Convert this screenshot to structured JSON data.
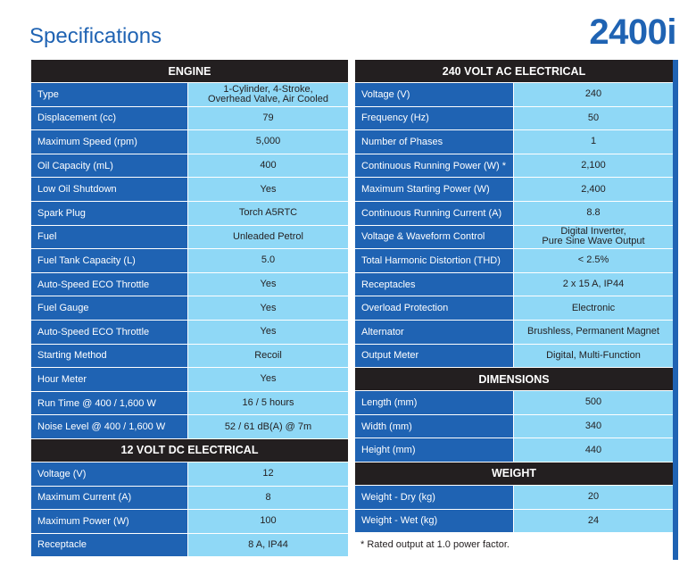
{
  "header": {
    "title": "Specifications",
    "model": "2400i"
  },
  "left_sections": [
    {
      "title": "ENGINE",
      "rows": [
        {
          "label": "Type",
          "value": "1-Cylinder, 4-Stroke,\nOverhead Valve, Air Cooled"
        },
        {
          "label": "Displacement (cc)",
          "value": "79"
        },
        {
          "label": "Maximum Speed (rpm)",
          "value": "5,000"
        },
        {
          "label": "Oil Capacity (mL)",
          "value": "400"
        },
        {
          "label": "Low Oil Shutdown",
          "value": "Yes"
        },
        {
          "label": "Spark Plug",
          "value": "Torch A5RTC"
        },
        {
          "label": "Fuel",
          "value": "Unleaded Petrol"
        },
        {
          "label": "Fuel Tank Capacity (L)",
          "value": "5.0"
        },
        {
          "label": "Auto-Speed ECO Throttle",
          "value": "Yes"
        },
        {
          "label": "Fuel Gauge",
          "value": "Yes"
        },
        {
          "label": "Auto-Speed ECO Throttle",
          "value": "Yes"
        },
        {
          "label": "Starting Method",
          "value": "Recoil"
        },
        {
          "label": "Hour Meter",
          "value": "Yes"
        },
        {
          "label": "Run Time @ 400 / 1,600 W",
          "value": "16 / 5 hours"
        },
        {
          "label": "Noise Level @ 400 / 1,600 W",
          "value": "52 / 61 dB(A) @ 7m"
        }
      ]
    },
    {
      "title": "12 VOLT DC ELECTRICAL",
      "rows": [
        {
          "label": "Voltage (V)",
          "value": "12"
        },
        {
          "label": "Maximum Current (A)",
          "value": "8"
        },
        {
          "label": "Maximum Power (W)",
          "value": "100"
        },
        {
          "label": "Receptacle",
          "value": "8 A, IP44"
        }
      ]
    }
  ],
  "right_sections": [
    {
      "title": "240 VOLT AC ELECTRICAL",
      "rows": [
        {
          "label": "Voltage (V)",
          "value": "240"
        },
        {
          "label": "Frequency (Hz)",
          "value": "50"
        },
        {
          "label": "Number of Phases",
          "value": "1"
        },
        {
          "label": "Continuous Running Power (W) *",
          "value": "2,100"
        },
        {
          "label": "Maximum Starting Power (W)",
          "value": "2,400"
        },
        {
          "label": "Continuous Running Current (A)",
          "value": "8.8"
        },
        {
          "label": "Voltage & Waveform Control",
          "value": "Digital Inverter,\nPure Sine Wave Output"
        },
        {
          "label": "Total Harmonic Distortion (THD)",
          "value": "< 2.5%"
        },
        {
          "label": "Receptacles",
          "value": "2 x 15 A, IP44"
        },
        {
          "label": "Overload Protection",
          "value": "Electronic"
        },
        {
          "label": "Alternator",
          "value": "Brushless, Permanent Magnet"
        },
        {
          "label": "Output Meter",
          "value": "Digital, Multi-Function"
        }
      ]
    },
    {
      "title": "DIMENSIONS",
      "rows": [
        {
          "label": "Length (mm)",
          "value": "500"
        },
        {
          "label": "Width (mm)",
          "value": "340"
        },
        {
          "label": "Height (mm)",
          "value": "440"
        }
      ]
    },
    {
      "title": "WEIGHT",
      "rows": [
        {
          "label": "Weight - Dry (kg)",
          "value": "20"
        },
        {
          "label": "Weight - Wet (kg)",
          "value": "24"
        }
      ]
    }
  ],
  "footnote": "* Rated output at 1.0 power factor.",
  "colors": {
    "brand_blue": "#1f63b3",
    "value_cell": "#8fd8f6",
    "header_bg": "#231f20"
  }
}
